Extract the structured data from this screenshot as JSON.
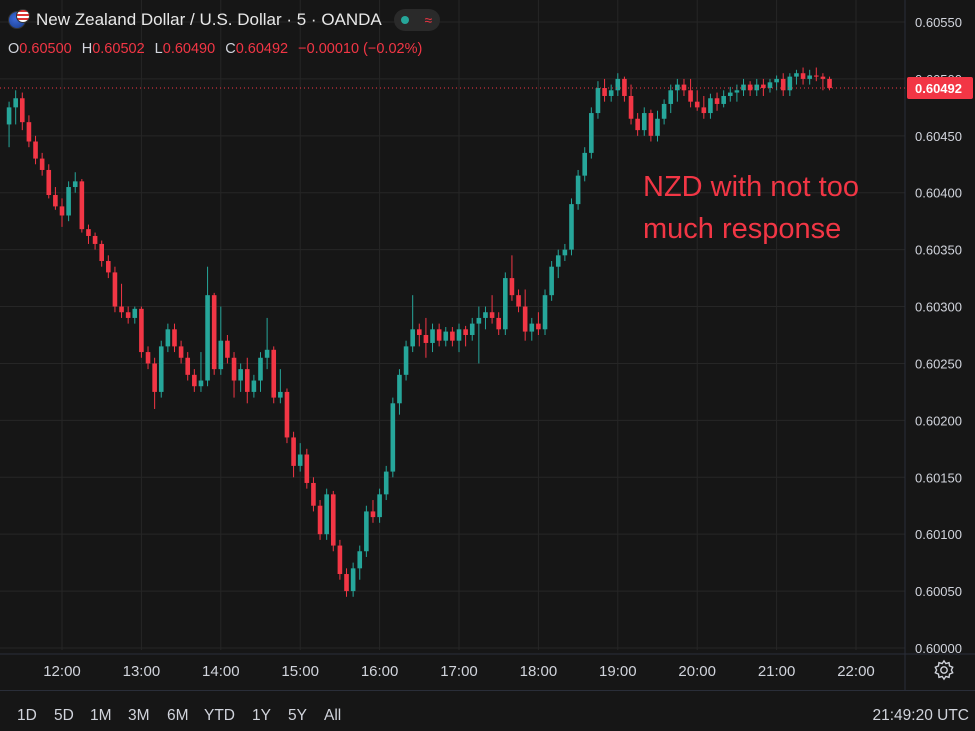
{
  "header": {
    "title": "New Zealand Dollar / U.S. Dollar · 5 · OANDA",
    "ohlc": [
      {
        "key": "O",
        "value": "0.60500"
      },
      {
        "key": "H",
        "value": "0.60502"
      },
      {
        "key": "L",
        "value": "0.60490"
      },
      {
        "key": "C",
        "value": "0.60492"
      }
    ],
    "change": "−0.00010 (−0.02%)"
  },
  "annotation": [
    "NZD with not too",
    "much response"
  ],
  "ranges": [
    "1D",
    "5D",
    "1M",
    "3M",
    "6M",
    "YTD",
    "1Y",
    "5Y",
    "All"
  ],
  "clock": "21:49:20 UTC",
  "colors": {
    "up": "#26a69a",
    "down": "#f23645",
    "background": "#161616",
    "grid": "#262626",
    "text": "#d1d4dc"
  },
  "icons": [
    "flag-icon",
    "market-status-icon",
    "settings-icon"
  ],
  "chart_data": {
    "type": "candlestick",
    "title": "New Zealand Dollar / U.S. Dollar · 5 · OANDA",
    "y_ticks": [
      "0.60550",
      "0.60500",
      "0.60450",
      "0.60400",
      "0.60350",
      "0.60300",
      "0.60250",
      "0.60200",
      "0.60150",
      "0.60100",
      "0.60050",
      "0.60000"
    ],
    "x_ticks": [
      "12:00",
      "13:00",
      "14:00",
      "15:00",
      "16:00",
      "17:00",
      "18:00",
      "19:00",
      "20:00",
      "21:00",
      "22:00"
    ],
    "ylim": [
      0.6,
      0.6055
    ],
    "last_price": "0.60492",
    "grid": true,
    "candles": [
      {
        "t": "11:20",
        "o": 0.6046,
        "h": 0.6048,
        "l": 0.6044,
        "c": 0.60475
      },
      {
        "t": "11:25",
        "o": 0.60475,
        "h": 0.6049,
        "l": 0.6046,
        "c": 0.60483
      },
      {
        "t": "11:30",
        "o": 0.60483,
        "h": 0.60488,
        "l": 0.60455,
        "c": 0.60462
      },
      {
        "t": "11:35",
        "o": 0.60462,
        "h": 0.60468,
        "l": 0.6044,
        "c": 0.60445
      },
      {
        "t": "11:40",
        "o": 0.60445,
        "h": 0.6045,
        "l": 0.60425,
        "c": 0.6043
      },
      {
        "t": "11:45",
        "o": 0.6043,
        "h": 0.60435,
        "l": 0.60415,
        "c": 0.6042
      },
      {
        "t": "11:50",
        "o": 0.6042,
        "h": 0.60425,
        "l": 0.60395,
        "c": 0.60398
      },
      {
        "t": "11:55",
        "o": 0.60398,
        "h": 0.60405,
        "l": 0.60385,
        "c": 0.60388
      },
      {
        "t": "12:00",
        "o": 0.60388,
        "h": 0.60395,
        "l": 0.6037,
        "c": 0.6038
      },
      {
        "t": "12:05",
        "o": 0.6038,
        "h": 0.6041,
        "l": 0.60375,
        "c": 0.60405
      },
      {
        "t": "12:10",
        "o": 0.60405,
        "h": 0.60418,
        "l": 0.604,
        "c": 0.6041
      },
      {
        "t": "12:15",
        "o": 0.6041,
        "h": 0.60412,
        "l": 0.60365,
        "c": 0.60368
      },
      {
        "t": "12:20",
        "o": 0.60368,
        "h": 0.60372,
        "l": 0.60355,
        "c": 0.60362
      },
      {
        "t": "12:25",
        "o": 0.60362,
        "h": 0.60365,
        "l": 0.6035,
        "c": 0.60355
      },
      {
        "t": "12:30",
        "o": 0.60355,
        "h": 0.60358,
        "l": 0.60335,
        "c": 0.6034
      },
      {
        "t": "12:35",
        "o": 0.6034,
        "h": 0.60345,
        "l": 0.60325,
        "c": 0.6033
      },
      {
        "t": "12:40",
        "o": 0.6033,
        "h": 0.60335,
        "l": 0.60295,
        "c": 0.603
      },
      {
        "t": "12:45",
        "o": 0.603,
        "h": 0.6032,
        "l": 0.6029,
        "c": 0.60295
      },
      {
        "t": "12:50",
        "o": 0.60295,
        "h": 0.603,
        "l": 0.60285,
        "c": 0.6029
      },
      {
        "t": "12:55",
        "o": 0.6029,
        "h": 0.603,
        "l": 0.60285,
        "c": 0.60298
      },
      {
        "t": "13:00",
        "o": 0.60298,
        "h": 0.603,
        "l": 0.60255,
        "c": 0.6026
      },
      {
        "t": "13:05",
        "o": 0.6026,
        "h": 0.60265,
        "l": 0.60245,
        "c": 0.6025
      },
      {
        "t": "13:10",
        "o": 0.6025,
        "h": 0.60255,
        "l": 0.6021,
        "c": 0.60225
      },
      {
        "t": "13:15",
        "o": 0.60225,
        "h": 0.6027,
        "l": 0.6022,
        "c": 0.60265
      },
      {
        "t": "13:20",
        "o": 0.60265,
        "h": 0.60285,
        "l": 0.6026,
        "c": 0.6028
      },
      {
        "t": "13:25",
        "o": 0.6028,
        "h": 0.60285,
        "l": 0.6026,
        "c": 0.60265
      },
      {
        "t": "13:30",
        "o": 0.60265,
        "h": 0.6027,
        "l": 0.6025,
        "c": 0.60255
      },
      {
        "t": "13:35",
        "o": 0.60255,
        "h": 0.6026,
        "l": 0.60235,
        "c": 0.6024
      },
      {
        "t": "13:40",
        "o": 0.6024,
        "h": 0.60245,
        "l": 0.60225,
        "c": 0.6023
      },
      {
        "t": "13:45",
        "o": 0.6023,
        "h": 0.6026,
        "l": 0.60225,
        "c": 0.60235
      },
      {
        "t": "13:50",
        "o": 0.60235,
        "h": 0.60335,
        "l": 0.6023,
        "c": 0.6031
      },
      {
        "t": "13:55",
        "o": 0.6031,
        "h": 0.60312,
        "l": 0.6024,
        "c": 0.60245
      },
      {
        "t": "14:00",
        "o": 0.60245,
        "h": 0.603,
        "l": 0.6024,
        "c": 0.6027
      },
      {
        "t": "14:05",
        "o": 0.6027,
        "h": 0.60275,
        "l": 0.6025,
        "c": 0.60255
      },
      {
        "t": "14:10",
        "o": 0.60255,
        "h": 0.6026,
        "l": 0.6022,
        "c": 0.60235
      },
      {
        "t": "14:15",
        "o": 0.60235,
        "h": 0.6025,
        "l": 0.60225,
        "c": 0.60245
      },
      {
        "t": "14:20",
        "o": 0.60245,
        "h": 0.60255,
        "l": 0.60215,
        "c": 0.60225
      },
      {
        "t": "14:25",
        "o": 0.60225,
        "h": 0.6024,
        "l": 0.6022,
        "c": 0.60235
      },
      {
        "t": "14:30",
        "o": 0.60235,
        "h": 0.6026,
        "l": 0.60225,
        "c": 0.60255
      },
      {
        "t": "14:35",
        "o": 0.60255,
        "h": 0.6029,
        "l": 0.60245,
        "c": 0.60262
      },
      {
        "t": "14:40",
        "o": 0.60262,
        "h": 0.60265,
        "l": 0.60215,
        "c": 0.6022
      },
      {
        "t": "14:45",
        "o": 0.6022,
        "h": 0.60245,
        "l": 0.60215,
        "c": 0.60225
      },
      {
        "t": "14:50",
        "o": 0.60225,
        "h": 0.60228,
        "l": 0.6018,
        "c": 0.60185
      },
      {
        "t": "14:55",
        "o": 0.60185,
        "h": 0.6019,
        "l": 0.6015,
        "c": 0.6016
      },
      {
        "t": "15:00",
        "o": 0.6016,
        "h": 0.6018,
        "l": 0.60155,
        "c": 0.6017
      },
      {
        "t": "15:05",
        "o": 0.6017,
        "h": 0.60175,
        "l": 0.6014,
        "c": 0.60145
      },
      {
        "t": "15:10",
        "o": 0.60145,
        "h": 0.6015,
        "l": 0.6012,
        "c": 0.60125
      },
      {
        "t": "15:15",
        "o": 0.60125,
        "h": 0.6013,
        "l": 0.60095,
        "c": 0.601
      },
      {
        "t": "15:20",
        "o": 0.601,
        "h": 0.6014,
        "l": 0.60095,
        "c": 0.60135
      },
      {
        "t": "15:25",
        "o": 0.60135,
        "h": 0.60138,
        "l": 0.60085,
        "c": 0.6009
      },
      {
        "t": "15:30",
        "o": 0.6009,
        "h": 0.60095,
        "l": 0.6006,
        "c": 0.60065
      },
      {
        "t": "15:35",
        "o": 0.60065,
        "h": 0.6007,
        "l": 0.60045,
        "c": 0.6005
      },
      {
        "t": "15:40",
        "o": 0.6005,
        "h": 0.60075,
        "l": 0.60045,
        "c": 0.6007
      },
      {
        "t": "15:45",
        "o": 0.6007,
        "h": 0.6009,
        "l": 0.6006,
        "c": 0.60085
      },
      {
        "t": "15:50",
        "o": 0.60085,
        "h": 0.60125,
        "l": 0.6008,
        "c": 0.6012
      },
      {
        "t": "15:55",
        "o": 0.6012,
        "h": 0.6013,
        "l": 0.6011,
        "c": 0.60115
      },
      {
        "t": "16:00",
        "o": 0.60115,
        "h": 0.6014,
        "l": 0.6011,
        "c": 0.60135
      },
      {
        "t": "16:05",
        "o": 0.60135,
        "h": 0.6016,
        "l": 0.6013,
        "c": 0.60155
      },
      {
        "t": "16:10",
        "o": 0.60155,
        "h": 0.6022,
        "l": 0.6015,
        "c": 0.60215
      },
      {
        "t": "16:15",
        "o": 0.60215,
        "h": 0.60245,
        "l": 0.60205,
        "c": 0.6024
      },
      {
        "t": "16:20",
        "o": 0.6024,
        "h": 0.6027,
        "l": 0.60235,
        "c": 0.60265
      },
      {
        "t": "16:25",
        "o": 0.60265,
        "h": 0.6031,
        "l": 0.6026,
        "c": 0.6028
      },
      {
        "t": "16:30",
        "o": 0.6028,
        "h": 0.60285,
        "l": 0.60265,
        "c": 0.60275
      },
      {
        "t": "16:35",
        "o": 0.60275,
        "h": 0.6029,
        "l": 0.60255,
        "c": 0.60268
      },
      {
        "t": "16:40",
        "o": 0.60268,
        "h": 0.60285,
        "l": 0.6026,
        "c": 0.6028
      },
      {
        "t": "16:45",
        "o": 0.6028,
        "h": 0.60285,
        "l": 0.60265,
        "c": 0.6027
      },
      {
        "t": "16:50",
        "o": 0.6027,
        "h": 0.60282,
        "l": 0.60265,
        "c": 0.60278
      },
      {
        "t": "16:55",
        "o": 0.60278,
        "h": 0.60282,
        "l": 0.60265,
        "c": 0.6027
      },
      {
        "t": "17:00",
        "o": 0.6027,
        "h": 0.60285,
        "l": 0.6026,
        "c": 0.6028
      },
      {
        "t": "17:05",
        "o": 0.6028,
        "h": 0.60283,
        "l": 0.60265,
        "c": 0.60275
      },
      {
        "t": "17:10",
        "o": 0.60275,
        "h": 0.6029,
        "l": 0.6027,
        "c": 0.60285
      },
      {
        "t": "17:15",
        "o": 0.60285,
        "h": 0.603,
        "l": 0.6025,
        "c": 0.6029
      },
      {
        "t": "17:20",
        "o": 0.6029,
        "h": 0.603,
        "l": 0.6028,
        "c": 0.60295
      },
      {
        "t": "17:25",
        "o": 0.60295,
        "h": 0.6031,
        "l": 0.60285,
        "c": 0.6029
      },
      {
        "t": "17:30",
        "o": 0.6029,
        "h": 0.60295,
        "l": 0.60275,
        "c": 0.6028
      },
      {
        "t": "17:35",
        "o": 0.6028,
        "h": 0.6033,
        "l": 0.60275,
        "c": 0.60325
      },
      {
        "t": "17:40",
        "o": 0.60325,
        "h": 0.60345,
        "l": 0.60305,
        "c": 0.6031
      },
      {
        "t": "17:45",
        "o": 0.6031,
        "h": 0.60315,
        "l": 0.60295,
        "c": 0.603
      },
      {
        "t": "17:50",
        "o": 0.603,
        "h": 0.60315,
        "l": 0.6027,
        "c": 0.60278
      },
      {
        "t": "17:55",
        "o": 0.60278,
        "h": 0.6029,
        "l": 0.6027,
        "c": 0.60285
      },
      {
        "t": "18:00",
        "o": 0.60285,
        "h": 0.60295,
        "l": 0.60275,
        "c": 0.6028
      },
      {
        "t": "18:05",
        "o": 0.6028,
        "h": 0.60315,
        "l": 0.60275,
        "c": 0.6031
      },
      {
        "t": "18:10",
        "o": 0.6031,
        "h": 0.6034,
        "l": 0.60305,
        "c": 0.60335
      },
      {
        "t": "18:15",
        "o": 0.60335,
        "h": 0.6035,
        "l": 0.60325,
        "c": 0.60345
      },
      {
        "t": "18:20",
        "o": 0.60345,
        "h": 0.60355,
        "l": 0.6034,
        "c": 0.6035
      },
      {
        "t": "18:25",
        "o": 0.6035,
        "h": 0.60395,
        "l": 0.60345,
        "c": 0.6039
      },
      {
        "t": "18:30",
        "o": 0.6039,
        "h": 0.6042,
        "l": 0.60385,
        "c": 0.60415
      },
      {
        "t": "18:35",
        "o": 0.60415,
        "h": 0.6044,
        "l": 0.6041,
        "c": 0.60435
      },
      {
        "t": "18:40",
        "o": 0.60435,
        "h": 0.60475,
        "l": 0.6043,
        "c": 0.6047
      },
      {
        "t": "18:45",
        "o": 0.6047,
        "h": 0.60498,
        "l": 0.60465,
        "c": 0.60492
      },
      {
        "t": "18:50",
        "o": 0.60492,
        "h": 0.605,
        "l": 0.6048,
        "c": 0.60485
      },
      {
        "t": "18:55",
        "o": 0.60485,
        "h": 0.60495,
        "l": 0.6048,
        "c": 0.6049
      },
      {
        "t": "19:00",
        "o": 0.6049,
        "h": 0.60505,
        "l": 0.60485,
        "c": 0.605
      },
      {
        "t": "19:05",
        "o": 0.605,
        "h": 0.60502,
        "l": 0.6048,
        "c": 0.60485
      },
      {
        "t": "19:10",
        "o": 0.60485,
        "h": 0.60495,
        "l": 0.6046,
        "c": 0.60465
      },
      {
        "t": "19:15",
        "o": 0.60465,
        "h": 0.6047,
        "l": 0.6045,
        "c": 0.60455
      },
      {
        "t": "19:20",
        "o": 0.60455,
        "h": 0.60475,
        "l": 0.6045,
        "c": 0.6047
      },
      {
        "t": "19:25",
        "o": 0.6047,
        "h": 0.60473,
        "l": 0.60445,
        "c": 0.6045
      },
      {
        "t": "19:30",
        "o": 0.6045,
        "h": 0.60472,
        "l": 0.60445,
        "c": 0.60465
      },
      {
        "t": "19:35",
        "o": 0.60465,
        "h": 0.60482,
        "l": 0.6046,
        "c": 0.60478
      },
      {
        "t": "19:40",
        "o": 0.60478,
        "h": 0.60495,
        "l": 0.6047,
        "c": 0.6049
      },
      {
        "t": "19:45",
        "o": 0.6049,
        "h": 0.605,
        "l": 0.6048,
        "c": 0.60495
      },
      {
        "t": "19:50",
        "o": 0.60495,
        "h": 0.605,
        "l": 0.60485,
        "c": 0.6049
      },
      {
        "t": "19:55",
        "o": 0.6049,
        "h": 0.605,
        "l": 0.60475,
        "c": 0.6048
      },
      {
        "t": "20:00",
        "o": 0.6048,
        "h": 0.6049,
        "l": 0.60472,
        "c": 0.60475
      },
      {
        "t": "20:05",
        "o": 0.60475,
        "h": 0.60485,
        "l": 0.60465,
        "c": 0.6047
      },
      {
        "t": "20:10",
        "o": 0.6047,
        "h": 0.60487,
        "l": 0.60465,
        "c": 0.60483
      },
      {
        "t": "20:15",
        "o": 0.60483,
        "h": 0.60488,
        "l": 0.60472,
        "c": 0.60478
      },
      {
        "t": "20:20",
        "o": 0.60478,
        "h": 0.6049,
        "l": 0.60475,
        "c": 0.60485
      },
      {
        "t": "20:25",
        "o": 0.60485,
        "h": 0.60493,
        "l": 0.6048,
        "c": 0.60488
      },
      {
        "t": "20:30",
        "o": 0.60488,
        "h": 0.60495,
        "l": 0.6048,
        "c": 0.6049
      },
      {
        "t": "20:35",
        "o": 0.6049,
        "h": 0.605,
        "l": 0.60485,
        "c": 0.60495
      },
      {
        "t": "20:40",
        "o": 0.60495,
        "h": 0.60498,
        "l": 0.60485,
        "c": 0.6049
      },
      {
        "t": "20:45",
        "o": 0.6049,
        "h": 0.605,
        "l": 0.60485,
        "c": 0.60495
      },
      {
        "t": "20:50",
        "o": 0.60495,
        "h": 0.605,
        "l": 0.60485,
        "c": 0.60492
      },
      {
        "t": "20:55",
        "o": 0.60492,
        "h": 0.605,
        "l": 0.60488,
        "c": 0.60497
      },
      {
        "t": "21:00",
        "o": 0.60497,
        "h": 0.60503,
        "l": 0.6049,
        "c": 0.605
      },
      {
        "t": "21:05",
        "o": 0.605,
        "h": 0.60505,
        "l": 0.60485,
        "c": 0.6049
      },
      {
        "t": "21:10",
        "o": 0.6049,
        "h": 0.60505,
        "l": 0.60485,
        "c": 0.60502
      },
      {
        "t": "21:15",
        "o": 0.60502,
        "h": 0.60508,
        "l": 0.60495,
        "c": 0.60505
      },
      {
        "t": "21:20",
        "o": 0.60505,
        "h": 0.6051,
        "l": 0.60495,
        "c": 0.605
      },
      {
        "t": "21:25",
        "o": 0.605,
        "h": 0.60508,
        "l": 0.60495,
        "c": 0.60503
      },
      {
        "t": "21:30",
        "o": 0.60503,
        "h": 0.6051,
        "l": 0.60498,
        "c": 0.60502
      },
      {
        "t": "21:35",
        "o": 0.60502,
        "h": 0.60505,
        "l": 0.6049,
        "c": 0.605
      },
      {
        "t": "21:40",
        "o": 0.605,
        "h": 0.60502,
        "l": 0.6049,
        "c": 0.60492
      }
    ]
  }
}
